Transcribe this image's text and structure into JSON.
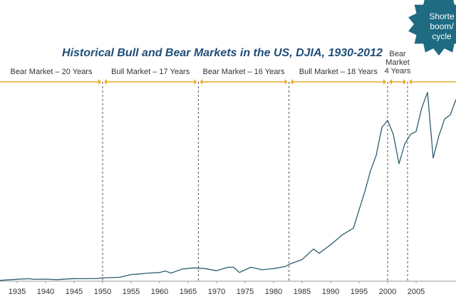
{
  "chart_data": {
    "type": "line",
    "title": "Historical Bull and Bear Markets in the US, DJIA, 1930-2012",
    "xlabel": "",
    "ylabel": "",
    "xlim": [
      1932,
      2012
    ],
    "ylim": [
      0,
      14000
    ],
    "x_ticks": [
      "1935",
      "1940",
      "1945",
      "1950",
      "1955",
      "1960",
      "1965",
      "1970",
      "1975",
      "1980",
      "1985",
      "1990",
      "1995",
      "2000",
      "2005"
    ],
    "grid": false,
    "boundaries": [
      1950,
      1966.8,
      1982.7,
      2000,
      2003.5
    ],
    "phases": [
      {
        "label": "Bear Market – 20 Years",
        "start": 1930,
        "end": 1950
      },
      {
        "label": "Bull Market – 17 Years",
        "start": 1950,
        "end": 1966.8
      },
      {
        "label": "Bear Market – 16 Years",
        "start": 1966.8,
        "end": 1982.7
      },
      {
        "label": "Bull Market – 18 Years",
        "start": 1982.7,
        "end": 2000
      },
      {
        "label": "Bear Market 4 Years",
        "start": 2000,
        "end": 2003.5
      }
    ],
    "series": [
      {
        "color": "#2e5d6e",
        "x": [
          1932,
          1935,
          1937,
          1938,
          1940,
          1942,
          1945,
          1946,
          1949,
          1950,
          1953,
          1955,
          1956,
          1958,
          1960,
          1961,
          1962,
          1964,
          1966,
          1968,
          1970,
          1972,
          1973,
          1974,
          1976,
          1978,
          1980,
          1982,
          1983,
          1985,
          1987,
          1988,
          1990,
          1992,
          1994,
          1995,
          1996,
          1997,
          1998,
          1999,
          2000,
          2001,
          2002,
          2003,
          2004,
          2005,
          2006,
          2007,
          2008,
          2009,
          2010,
          2011,
          2012
        ],
        "y": [
          60,
          140,
          180,
          130,
          150,
          110,
          190,
          180,
          190,
          235,
          280,
          480,
          500,
          580,
          620,
          730,
          580,
          870,
          950,
          900,
          750,
          1000,
          1000,
          620,
          1000,
          820,
          900,
          1050,
          1250,
          1550,
          2300,
          2000,
          2600,
          3300,
          3800,
          5100,
          6400,
          7900,
          9000,
          11000,
          11500,
          10500,
          8400,
          9800,
          10500,
          10700,
          12400,
          13500,
          8800,
          10400,
          11600,
          11900,
          13000
        ]
      }
    ]
  },
  "badge": {
    "text_lines": [
      "Shorte",
      "boom/",
      "cycle"
    ],
    "color": "#1e6b82"
  }
}
